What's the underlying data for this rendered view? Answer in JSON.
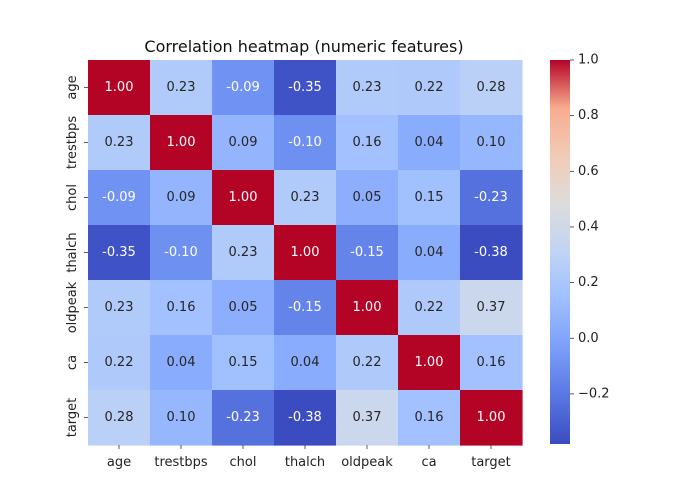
{
  "chart_data": {
    "type": "heatmap",
    "title": "Correlation heatmap (numeric features)",
    "xlabel": "",
    "ylabel": "",
    "x_categories": [
      "age",
      "trestbps",
      "chol",
      "thalch",
      "oldpeak",
      "ca",
      "target"
    ],
    "y_categories": [
      "age",
      "trestbps",
      "chol",
      "thalch",
      "oldpeak",
      "ca",
      "target"
    ],
    "values": [
      [
        1.0,
        0.23,
        -0.09,
        -0.35,
        0.23,
        0.22,
        0.28
      ],
      [
        0.23,
        1.0,
        0.09,
        -0.1,
        0.16,
        0.04,
        0.1
      ],
      [
        -0.09,
        0.09,
        1.0,
        0.23,
        0.05,
        0.15,
        -0.23
      ],
      [
        -0.35,
        -0.1,
        0.23,
        1.0,
        -0.15,
        0.04,
        -0.38
      ],
      [
        0.23,
        0.16,
        0.05,
        -0.15,
        1.0,
        0.22,
        0.37
      ],
      [
        0.22,
        0.04,
        0.15,
        0.04,
        0.22,
        1.0,
        0.16
      ],
      [
        0.28,
        0.1,
        -0.23,
        -0.38,
        0.37,
        0.16,
        1.0
      ]
    ],
    "colormap": "coolwarm",
    "value_range": [
      -0.38,
      1.0
    ],
    "annotations": true,
    "annotation_format": "0.00",
    "colorbar": {
      "ticks": [
        -0.2,
        0.0,
        0.2,
        0.4,
        0.6,
        0.8,
        1.0
      ],
      "tick_labels": [
        "−0.2",
        "0.0",
        "0.2",
        "0.4",
        "0.6",
        "0.8",
        "1.0"
      ],
      "placement": "right"
    },
    "grid": false
  }
}
